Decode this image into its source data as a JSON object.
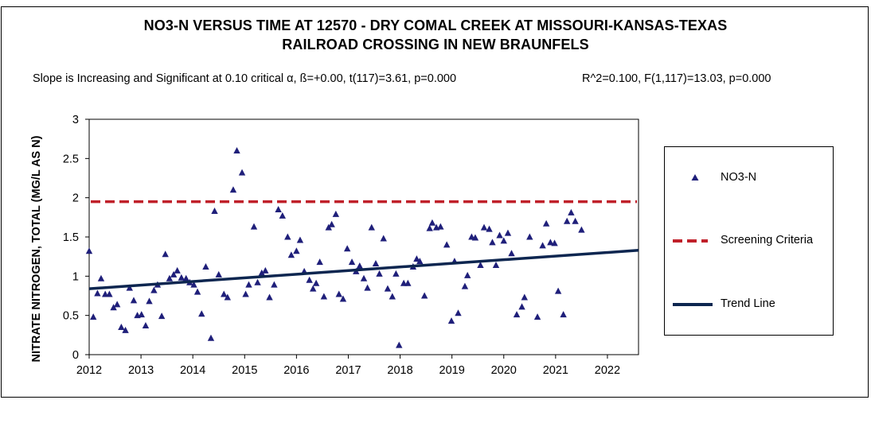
{
  "chart_data": {
    "type": "scatter",
    "title_line1": "NO3-N VERSUS TIME AT 12570 - DRY COMAL CREEK AT MISSOURI-KANSAS-TEXAS",
    "title_line2": "RAILROAD CROSSING IN NEW BRAUNFELS",
    "stat_left": "Slope is Increasing and Significant at 0.10 critical α, ß=+0.00, t(117)=3.61, p=0.000",
    "stat_right": "R^2=0.100, F(1,117)=13.03, p=0.000",
    "ylabel": "NITRATE NITROGEN, TOTAL (MG/L AS N)",
    "xlabel": "",
    "xlim": [
      2012,
      2022.6
    ],
    "ylim": [
      0,
      3
    ],
    "x_ticks": [
      "2012",
      "2013",
      "2014",
      "2015",
      "2016",
      "2017",
      "2018",
      "2019",
      "2020",
      "2021",
      "2022"
    ],
    "y_ticks": [
      "0",
      "0.5",
      "1",
      "1.5",
      "2",
      "2.5",
      "3"
    ],
    "grid": false,
    "legend": {
      "position": "right",
      "items": [
        {
          "label": "NO3-N",
          "kind": "marker"
        },
        {
          "label": "Screening Criteria",
          "kind": "dashed"
        },
        {
          "label": "Trend Line",
          "kind": "solid"
        }
      ]
    },
    "colors": {
      "points": "#1f1f7a",
      "screening": "#c0202a",
      "trend": "#0d2650"
    },
    "screening_criteria": 1.95,
    "trend_line": {
      "x": [
        2012,
        2022.6
      ],
      "y": [
        0.84,
        1.33
      ]
    },
    "series": [
      {
        "name": "NO3-N",
        "points": [
          [
            2012.0,
            1.32
          ],
          [
            2012.08,
            0.48
          ],
          [
            2012.16,
            0.78
          ],
          [
            2012.23,
            0.97
          ],
          [
            2012.31,
            0.77
          ],
          [
            2012.39,
            0.77
          ],
          [
            2012.47,
            0.6
          ],
          [
            2012.54,
            0.64
          ],
          [
            2012.62,
            0.35
          ],
          [
            2012.7,
            0.31
          ],
          [
            2012.78,
            0.85
          ],
          [
            2012.86,
            0.69
          ],
          [
            2012.93,
            0.5
          ],
          [
            2013.01,
            0.51
          ],
          [
            2013.09,
            0.37
          ],
          [
            2013.16,
            0.68
          ],
          [
            2013.25,
            0.82
          ],
          [
            2013.32,
            0.89
          ],
          [
            2013.4,
            0.49
          ],
          [
            2013.47,
            1.28
          ],
          [
            2013.55,
            0.97
          ],
          [
            2013.63,
            1.02
          ],
          [
            2013.7,
            1.07
          ],
          [
            2013.78,
            0.98
          ],
          [
            2013.87,
            0.97
          ],
          [
            2013.94,
            0.92
          ],
          [
            2014.02,
            0.89
          ],
          [
            2014.09,
            0.8
          ],
          [
            2014.17,
            0.52
          ],
          [
            2014.25,
            1.12
          ],
          [
            2014.35,
            0.21
          ],
          [
            2014.42,
            1.83
          ],
          [
            2014.5,
            1.02
          ],
          [
            2014.6,
            0.77
          ],
          [
            2014.67,
            0.73
          ],
          [
            2014.78,
            2.1
          ],
          [
            2014.85,
            2.6
          ],
          [
            2014.95,
            2.32
          ],
          [
            2015.02,
            0.77
          ],
          [
            2015.08,
            0.89
          ],
          [
            2015.18,
            1.63
          ],
          [
            2015.25,
            0.92
          ],
          [
            2015.33,
            1.04
          ],
          [
            2015.4,
            1.07
          ],
          [
            2015.48,
            0.73
          ],
          [
            2015.57,
            0.89
          ],
          [
            2015.65,
            1.85
          ],
          [
            2015.73,
            1.77
          ],
          [
            2015.83,
            1.5
          ],
          [
            2015.9,
            1.27
          ],
          [
            2016.0,
            1.32
          ],
          [
            2016.07,
            1.46
          ],
          [
            2016.15,
            1.06
          ],
          [
            2016.25,
            0.95
          ],
          [
            2016.32,
            0.84
          ],
          [
            2016.38,
            0.91
          ],
          [
            2016.45,
            1.18
          ],
          [
            2016.53,
            0.74
          ],
          [
            2016.62,
            1.62
          ],
          [
            2016.68,
            1.66
          ],
          [
            2016.76,
            1.79
          ],
          [
            2016.82,
            0.77
          ],
          [
            2016.9,
            0.71
          ],
          [
            2016.98,
            1.35
          ],
          [
            2017.07,
            1.18
          ],
          [
            2017.15,
            1.06
          ],
          [
            2017.22,
            1.13
          ],
          [
            2017.3,
            0.97
          ],
          [
            2017.37,
            0.85
          ],
          [
            2017.45,
            1.62
          ],
          [
            2017.53,
            1.16
          ],
          [
            2017.6,
            1.03
          ],
          [
            2017.68,
            1.48
          ],
          [
            2017.76,
            0.84
          ],
          [
            2017.85,
            0.74
          ],
          [
            2017.92,
            1.03
          ],
          [
            2017.98,
            0.12
          ],
          [
            2018.07,
            0.91
          ],
          [
            2018.15,
            0.91
          ],
          [
            2018.25,
            1.12
          ],
          [
            2018.32,
            1.22
          ],
          [
            2018.38,
            1.19
          ],
          [
            2018.47,
            0.75
          ],
          [
            2018.57,
            1.61
          ],
          [
            2018.62,
            1.68
          ],
          [
            2018.7,
            1.62
          ],
          [
            2018.78,
            1.63
          ],
          [
            2018.9,
            1.4
          ],
          [
            2018.99,
            0.43
          ],
          [
            2019.05,
            1.19
          ],
          [
            2019.12,
            0.53
          ],
          [
            2019.25,
            0.87
          ],
          [
            2019.3,
            1.01
          ],
          [
            2019.38,
            1.5
          ],
          [
            2019.45,
            1.49
          ],
          [
            2019.55,
            1.14
          ],
          [
            2019.62,
            1.62
          ],
          [
            2019.72,
            1.6
          ],
          [
            2019.78,
            1.43
          ],
          [
            2019.85,
            1.14
          ],
          [
            2019.92,
            1.52
          ],
          [
            2020.0,
            1.45
          ],
          [
            2020.08,
            1.55
          ],
          [
            2020.15,
            1.29
          ],
          [
            2020.25,
            0.51
          ],
          [
            2020.35,
            0.61
          ],
          [
            2020.4,
            0.73
          ],
          [
            2020.5,
            1.5
          ],
          [
            2020.65,
            0.48
          ],
          [
            2020.75,
            1.39
          ],
          [
            2020.82,
            1.67
          ],
          [
            2020.9,
            1.43
          ],
          [
            2020.98,
            1.42
          ],
          [
            2021.05,
            0.81
          ],
          [
            2021.15,
            0.51
          ],
          [
            2021.22,
            1.7
          ],
          [
            2021.3,
            1.81
          ],
          [
            2021.38,
            1.7
          ],
          [
            2021.5,
            1.59
          ]
        ]
      }
    ]
  }
}
